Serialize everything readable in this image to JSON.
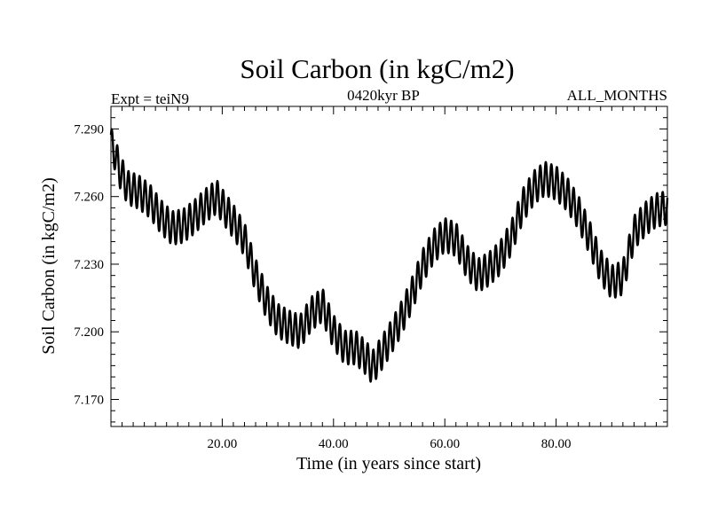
{
  "chart_data": {
    "type": "line",
    "title": "Soil Carbon (in kgC/m2)",
    "subtitle": "0420kyr BP",
    "expt_label": "Expt = teiN9",
    "period_label": "ALL_MONTHS",
    "xlabel": "Time (in years since start)",
    "ylabel": "Soil Carbon (in kgC/m2)",
    "xlim": [
      0,
      100
    ],
    "ylim": [
      7.158,
      7.3
    ],
    "x_ticks": [
      20,
      40,
      60,
      80
    ],
    "x_tick_labels": [
      "20.00",
      "40.00",
      "60.00",
      "80.00"
    ],
    "y_ticks": [
      7.17,
      7.2,
      7.23,
      7.26,
      7.29
    ],
    "y_tick_labels": [
      "7.170",
      "7.200",
      "7.230",
      "7.260",
      "7.290"
    ],
    "grid": false,
    "series": [
      {
        "name": "Soil Carbon",
        "seasonal_amplitude": 0.0075,
        "seasonal_period_years": 1,
        "trend": {
          "x": [
            0,
            0.5,
            1.5,
            3,
            5,
            7,
            9,
            11,
            13,
            15,
            17,
            19,
            20,
            22,
            24,
            26,
            28,
            30,
            32,
            34,
            36,
            38,
            40,
            42,
            44,
            46,
            47,
            48,
            50,
            52,
            54,
            56,
            58,
            60,
            62,
            64,
            66,
            68,
            70,
            72,
            74,
            76,
            78,
            80,
            82,
            84,
            86,
            88,
            90,
            92,
            94,
            96,
            98,
            100
          ],
          "y": [
            7.283,
            7.281,
            7.272,
            7.264,
            7.262,
            7.258,
            7.251,
            7.246,
            7.247,
            7.251,
            7.256,
            7.26,
            7.256,
            7.249,
            7.241,
            7.225,
            7.213,
            7.205,
            7.202,
            7.2,
            7.208,
            7.212,
            7.2,
            7.193,
            7.193,
            7.188,
            7.184,
            7.188,
            7.196,
            7.205,
            7.216,
            7.229,
            7.238,
            7.243,
            7.241,
            7.231,
            7.225,
            7.228,
            7.233,
            7.242,
            7.256,
            7.264,
            7.268,
            7.266,
            7.261,
            7.253,
            7.242,
            7.229,
            7.222,
            7.224,
            7.244,
            7.25,
            7.254,
            7.255
          ]
        }
      }
    ]
  }
}
